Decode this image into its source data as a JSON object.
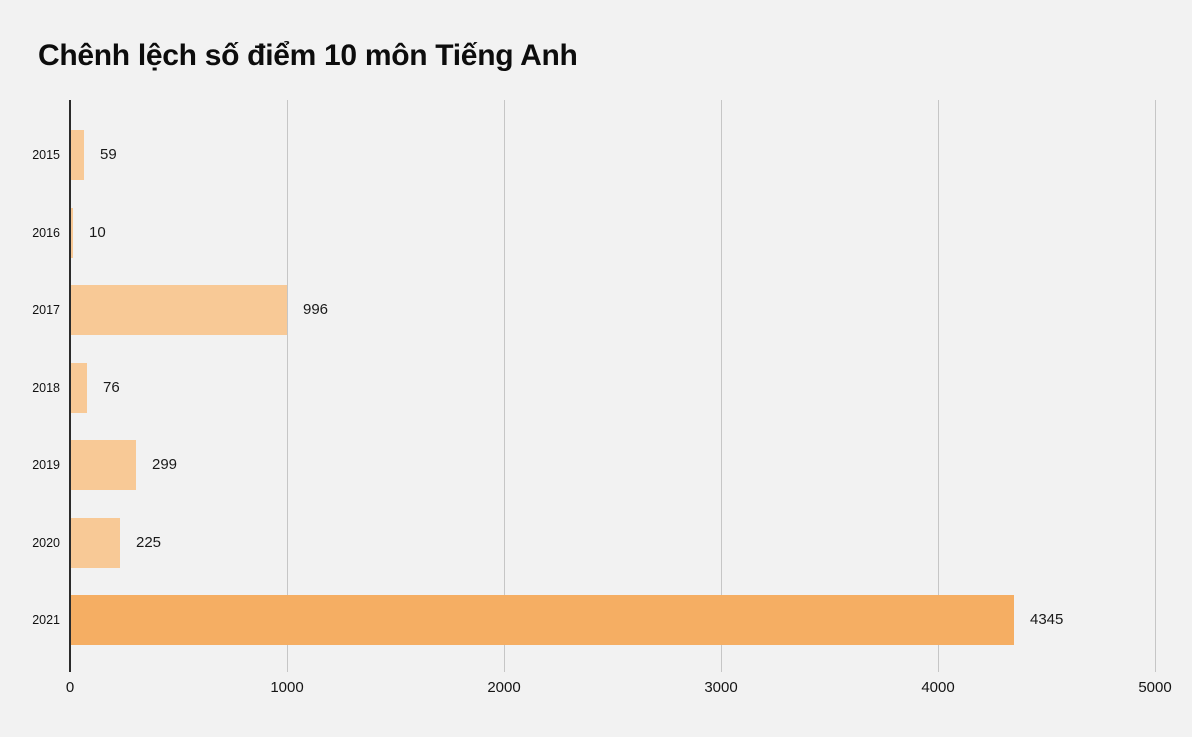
{
  "page": {
    "background": "#f2f2f2"
  },
  "header": {
    "title": "Chênh lệch số điểm 10 môn Tiếng Anh"
  },
  "chart_data": {
    "type": "bar",
    "orientation": "horizontal",
    "title": "Chênh lệch số điểm 10 môn Tiếng Anh",
    "categories": [
      "2015",
      "2016",
      "2017",
      "2018",
      "2019",
      "2020",
      "2021"
    ],
    "values": [
      59,
      10,
      996,
      76,
      299,
      225,
      4345
    ],
    "value_labels": [
      "59",
      "10",
      "996",
      "76",
      "299",
      "225",
      "4345"
    ],
    "xlabel": "",
    "ylabel": "",
    "xlim": [
      0,
      5000
    ],
    "x_ticks": [
      "0",
      "1000",
      "2000",
      "3000",
      "4000",
      "5000"
    ],
    "x_tick_values": [
      0,
      1000,
      2000,
      3000,
      4000,
      5000
    ],
    "grid": true,
    "legend": false,
    "highlighted_category": "2021",
    "colors": {
      "bar": "#f8c996",
      "bar_highlight": "#f5ae63",
      "axis_line": "#2b2b2b",
      "gridline": "#c6c6c6",
      "text": "#1a1a1a",
      "background": "#f2f2f2"
    }
  }
}
